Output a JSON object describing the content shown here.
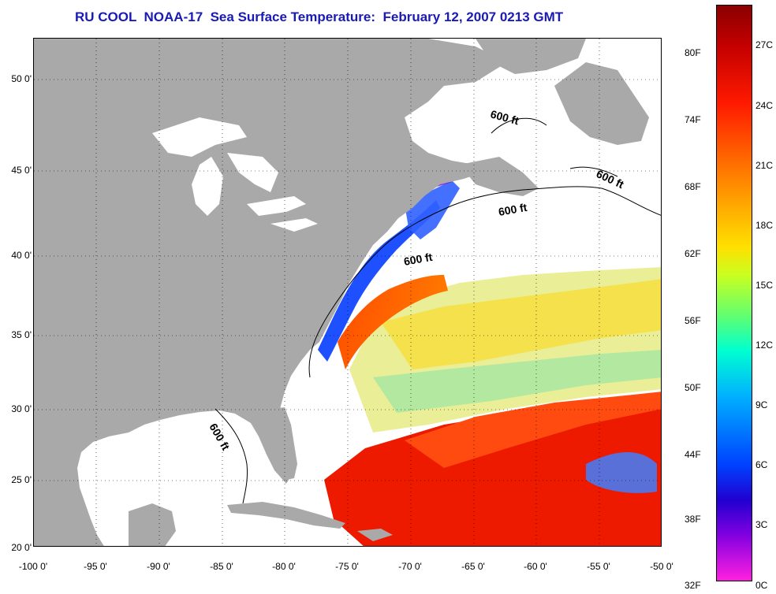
{
  "title": "RU COOL  NOAA-17  Sea Surface Temperature:  February 12, 2007 0213 GMT",
  "map": {
    "lat_labels": [
      "50 0'",
      "45 0'",
      "40 0'",
      "35 0'",
      "30 0'",
      "25 0'",
      "20 0'"
    ],
    "lon_labels": [
      "-100 0'",
      "-95 0'",
      "-90 0'",
      "-85 0'",
      "-80 0'",
      "-75 0'",
      "-70 0'",
      "-65 0'",
      "-60 0'",
      "-55 0'",
      "-50 0'"
    ],
    "contour_label": "600 ft",
    "land_color": "#a9a9a9",
    "cloud_color": "#ffffff"
  },
  "colorbar": {
    "fahrenheit": [
      "80F",
      "74F",
      "68F",
      "62F",
      "56F",
      "50F",
      "44F",
      "38F",
      "32F"
    ],
    "celsius": [
      "27C",
      "24C",
      "21C",
      "18C",
      "15C",
      "12C",
      "9C",
      "6C",
      "3C",
      "0C"
    ]
  }
}
